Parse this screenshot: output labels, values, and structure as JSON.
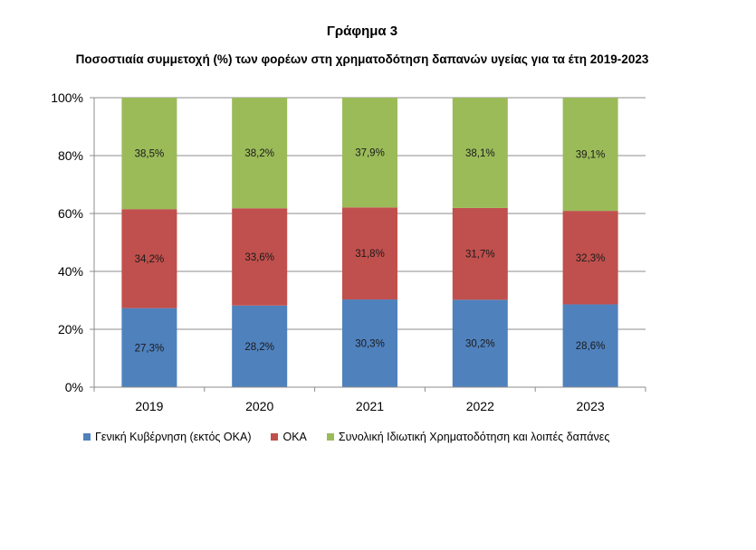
{
  "chart_data": {
    "type": "bar",
    "stacked": true,
    "title": "Γράφημα 3",
    "subtitle": "Ποσοστιαία συμμετοχή (%) των φορέων στη χρηματοδότηση δαπανών υγείας για τα έτη 2019-2023",
    "xlabel": "",
    "ylabel": "",
    "ylim": [
      0,
      100
    ],
    "yticks": [
      "0%",
      "20%",
      "40%",
      "60%",
      "80%",
      "100%"
    ],
    "ytick_values": [
      0,
      20,
      40,
      60,
      80,
      100
    ],
    "grid": true,
    "legend_position": "bottom",
    "categories": [
      "2019",
      "2020",
      "2021",
      "2022",
      "2023"
    ],
    "series": [
      {
        "name": "Γενική Κυβέρνηση (εκτός ΟΚΑ)",
        "color": "#4f81bd",
        "values": [
          27.3,
          28.2,
          30.3,
          30.2,
          28.6
        ],
        "labels": [
          "27,3%",
          "28,2%",
          "30,3%",
          "30,2%",
          "28,6%"
        ]
      },
      {
        "name": "ΟΚΑ",
        "color": "#c0504d",
        "values": [
          34.2,
          33.6,
          31.8,
          31.7,
          32.3
        ],
        "labels": [
          "34,2%",
          "33,6%",
          "31,8%",
          "31,7%",
          "32,3%"
        ]
      },
      {
        "name": "Συνολική Ιδιωτική Χρηματοδότηση και λοιπές δαπάνες",
        "color": "#9bbb59",
        "values": [
          38.5,
          38.2,
          37.9,
          38.1,
          39.1
        ],
        "labels": [
          "38,5%",
          "38,2%",
          "37,9%",
          "38,1%",
          "39,1%"
        ]
      }
    ]
  }
}
